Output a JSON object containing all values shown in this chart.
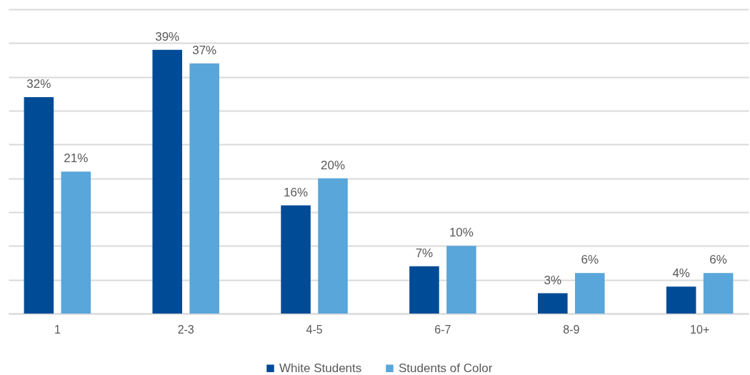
{
  "chart_data": {
    "type": "bar",
    "categories": [
      "1",
      "2-3",
      "4-5",
      "6-7",
      "8-9",
      "10+"
    ],
    "series": [
      {
        "name": "White Students",
        "color": "#004b96",
        "values": [
          32,
          39,
          16,
          7,
          3,
          4
        ],
        "value_labels": [
          "32%",
          "39%",
          "16%",
          "7%",
          "3%",
          "4%"
        ]
      },
      {
        "name": "Students of Color",
        "color": "#58a6da",
        "values": [
          21,
          37,
          20,
          10,
          6,
          6
        ],
        "value_labels": [
          "21%",
          "37%",
          "20%",
          "10%",
          "6%",
          "6%"
        ]
      }
    ],
    "ylim": [
      0,
      45
    ],
    "yticks": [
      {
        "value": 0,
        "label": null
      },
      {
        "value": 5,
        "label": null
      },
      {
        "value": 10,
        "label": null
      },
      {
        "value": 15,
        "label": null
      },
      {
        "value": 20,
        "label": null
      },
      {
        "value": 25,
        "label": null
      },
      {
        "value": 30,
        "label": null
      },
      {
        "value": 35,
        "label": null
      },
      {
        "value": 40,
        "label": null
      },
      {
        "value": 45,
        "label": null
      }
    ],
    "grid": "y",
    "legend": "bottom",
    "tick_labels": "x"
  }
}
